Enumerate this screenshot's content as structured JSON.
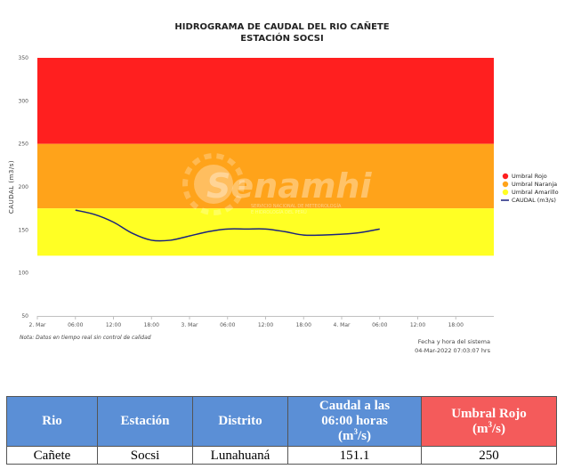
{
  "chart_data": {
    "type": "line",
    "title": "HIDROGRAMA DE CAUDAL DEL RIO CAÑETE",
    "subtitle": "ESTACIÓN SOCSI",
    "ylabel": "CAUDAL (m3/s)",
    "ylim": [
      50,
      350
    ],
    "yticks": [
      50,
      100,
      150,
      200,
      250,
      300,
      350
    ],
    "x_start": "2. Mar 00:00",
    "x_end": "4. Mar 24:00",
    "xtick_labels": [
      "2. Mar",
      "06:00",
      "12:00",
      "18:00",
      "3. Mar",
      "06:00",
      "12:00",
      "18:00",
      "4. Mar",
      "06:00",
      "12:00",
      "18:00"
    ],
    "bands": [
      {
        "name": "Umbral Rojo",
        "from": 250,
        "to": 350,
        "color": "#ff1f1f"
      },
      {
        "name": "Umbral Naranja",
        "from": 175,
        "to": 250,
        "color": "#ffa31a"
      },
      {
        "name": "Umbral Amarillo",
        "from": 120,
        "to": 175,
        "color": "#ffff24"
      }
    ],
    "series": [
      {
        "name": "CAUDAL (m3/s)",
        "color": "#1a237e",
        "x": [
          "2. Mar 06:00",
          "2. Mar 09:00",
          "2. Mar 12:00",
          "2. Mar 15:00",
          "2. Mar 18:00",
          "2. Mar 21:00",
          "3. Mar 00:00",
          "3. Mar 03:00",
          "3. Mar 06:00",
          "3. Mar 09:00",
          "3. Mar 12:00",
          "3. Mar 15:00",
          "3. Mar 18:00",
          "3. Mar 21:00",
          "4. Mar 00:00",
          "4. Mar 03:00",
          "4. Mar 06:00"
        ],
        "hours": [
          6,
          9,
          12,
          15,
          18,
          21,
          24,
          27,
          30,
          33,
          36,
          39,
          42,
          45,
          48,
          51,
          54
        ],
        "values": [
          173,
          168,
          159,
          146,
          138,
          138,
          143,
          148,
          151,
          151,
          151,
          148,
          144,
          144,
          145,
          147,
          151
        ]
      }
    ],
    "legend_position": "right",
    "grid": false,
    "note": "Nota: Datos en tiempo real sin control de calidad",
    "system_label": "Fecha y hora del sistema",
    "system_time": "04-Mar-2022 07:03:07 hrs",
    "watermark": "Senamhi",
    "watermark_sub1": "SERVICIO NACIONAL DE METEOROLOGÍA",
    "watermark_sub2": "E HIDROLOGÍA DEL PERÚ"
  },
  "table": {
    "headers": {
      "rio": "Rio",
      "estacion": "Estación",
      "distrito": "Distrito",
      "caudal_line1": "Caudal a las",
      "caudal_line2": "06:00 horas",
      "caudal_unit_base": "(m",
      "caudal_unit_exp": "3",
      "caudal_unit_tail": "/s)",
      "umbral_line1": "Umbral Rojo",
      "umbral_unit_base": "(m",
      "umbral_unit_exp": "3",
      "umbral_unit_tail": "/s)"
    },
    "row": {
      "rio": "Cañete",
      "estacion": "Socsi",
      "distrito": "Lunahuaná",
      "caudal": "151.1",
      "umbral": "250"
    },
    "colors": {
      "header_blue": "#5b8fd6",
      "header_red": "#f45b5b"
    }
  }
}
